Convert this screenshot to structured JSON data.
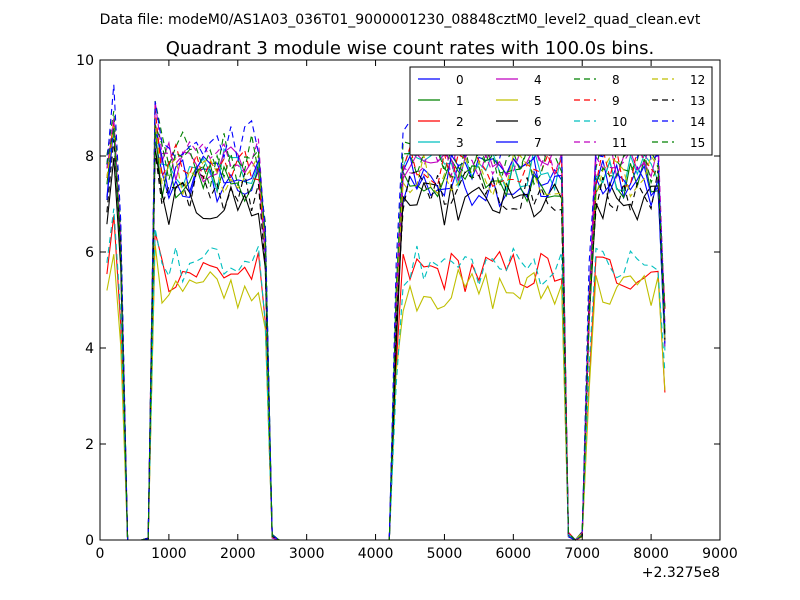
{
  "chart_data": {
    "type": "line",
    "suptitle": "Data file: modeM0/AS1A03_036T01_9000001230_08848cztM0_level2_quad_clean.evt",
    "title": "Quadrant 3 module wise count rates with 100.0s bins.",
    "xlabel": "",
    "ylabel": "",
    "xlim": [
      0,
      9000
    ],
    "ylim": [
      0,
      10
    ],
    "xticks": [
      0,
      1000,
      2000,
      3000,
      4000,
      5000,
      6000,
      7000,
      8000,
      9000
    ],
    "yticks": [
      0,
      2,
      4,
      6,
      8,
      10
    ],
    "x_offset_label": "+2.3275e8",
    "grid": false,
    "legend": {
      "placement": "top-right",
      "columns": 4
    },
    "series": [
      {
        "name": "0",
        "color": "#0000ff",
        "dash": "solid",
        "base": 7.4
      },
      {
        "name": "1",
        "color": "#008000",
        "dash": "solid",
        "base": 7.5
      },
      {
        "name": "2",
        "color": "#ff0000",
        "dash": "solid",
        "base": 5.6
      },
      {
        "name": "3",
        "color": "#00bfbf",
        "dash": "solid",
        "base": 7.7
      },
      {
        "name": "4",
        "color": "#bf00bf",
        "dash": "solid",
        "base": 7.9
      },
      {
        "name": "5",
        "color": "#bfbf00",
        "dash": "solid",
        "base": 5.2
      },
      {
        "name": "6",
        "color": "#000000",
        "dash": "solid",
        "base": 7.0
      },
      {
        "name": "7",
        "color": "#0000ff",
        "dash": "solid",
        "base": 7.6
      },
      {
        "name": "8",
        "color": "#008000",
        "dash": "dashed",
        "base": 8.1
      },
      {
        "name": "9",
        "color": "#ff0000",
        "dash": "dashed",
        "base": 7.8
      },
      {
        "name": "10",
        "color": "#00bfbf",
        "dash": "dashed",
        "base": 5.7
      },
      {
        "name": "11",
        "color": "#bf00bf",
        "dash": "dashed",
        "base": 8.0
      },
      {
        "name": "12",
        "color": "#bfbf00",
        "dash": "dashed",
        "base": 7.6
      },
      {
        "name": "13",
        "color": "#000000",
        "dash": "dashed",
        "base": 7.3
      },
      {
        "name": "14",
        "color": "#0000ff",
        "dash": "dashed",
        "base": 8.3
      },
      {
        "name": "15",
        "color": "#008000",
        "dash": "dashed",
        "base": 7.8
      }
    ],
    "time_profile": {
      "bin_width": 100,
      "x_start": 100,
      "x_end": 8200,
      "active_intervals": [
        [
          100,
          300
        ],
        [
          800,
          2400
        ],
        [
          4300,
          6700
        ],
        [
          7100,
          8200
        ]
      ],
      "transition_bins": {
        "400": 0.0,
        "700": 0.03,
        "2500": 0.08,
        "4200": 0.0,
        "6800": 0.12,
        "6900": 0.0,
        "7000": 0.12
      }
    }
  }
}
